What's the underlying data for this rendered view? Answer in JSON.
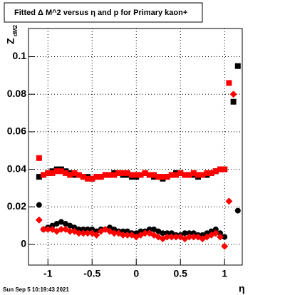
{
  "chart_data": {
    "type": "scatter",
    "title": "Fitted Δ M^2 versus η and p for Primary kaon+",
    "ylabel": "Z",
    "ylabel_subscript": "dM2",
    "xlabel": "η",
    "date": "Sun Sep  5 10:19:43 2021",
    "xlim": [
      -1.22,
      1.2
    ],
    "ylim": [
      -0.011,
      0.115
    ],
    "xticks": [
      -1,
      -0.5,
      0,
      0.5,
      1
    ],
    "yticks": [
      0,
      0.02,
      0.04,
      0.06,
      0.08,
      0.1
    ],
    "grid": true,
    "x": [
      -1.1,
      -1.05,
      -1,
      -0.95,
      -0.9,
      -0.85,
      -0.8,
      -0.75,
      -0.7,
      -0.65,
      -0.6,
      -0.55,
      -0.5,
      -0.45,
      -0.4,
      -0.35,
      -0.3,
      -0.25,
      -0.2,
      -0.15,
      -0.1,
      -0.05,
      0,
      0.05,
      0.1,
      0.15,
      0.2,
      0.25,
      0.3,
      0.35,
      0.4,
      0.45,
      0.5,
      0.55,
      0.6,
      0.65,
      0.7,
      0.75,
      0.8,
      0.85,
      0.9,
      0.95,
      1,
      1.05,
      1.1,
      1.15
    ],
    "series": [
      {
        "color": "#000000",
        "marker": "square",
        "values": [
          0.036,
          0.037,
          0.038,
          0.039,
          0.04,
          0.04,
          0.039,
          0.038,
          0.037,
          0.037,
          0.036,
          0.036,
          0.035,
          0.036,
          0.036,
          0.037,
          0.037,
          0.038,
          0.038,
          0.037,
          0.037,
          0.036,
          0.036,
          0.037,
          0.038,
          0.037,
          0.036,
          0.036,
          0.035,
          0.036,
          0.037,
          0.038,
          0.038,
          0.037,
          0.037,
          0.037,
          0.036,
          0.037,
          0.037,
          0.038,
          0.039,
          0.04,
          0.04,
          null,
          0.076,
          0.095
        ]
      },
      {
        "color": "#ff0000",
        "marker": "square",
        "values": [
          0.046,
          0.037,
          0.038,
          0.038,
          0.039,
          0.039,
          0.038,
          0.037,
          0.038,
          0.037,
          0.036,
          0.035,
          0.035,
          0.036,
          0.036,
          0.037,
          0.037,
          0.037,
          0.038,
          0.038,
          0.038,
          0.037,
          0.037,
          0.037,
          0.038,
          0.037,
          0.037,
          0.036,
          0.036,
          0.036,
          0.037,
          0.037,
          0.038,
          0.037,
          0.037,
          0.038,
          0.037,
          0.037,
          0.038,
          0.038,
          0.039,
          0.04,
          0.04,
          0.086,
          null,
          null
        ]
      },
      {
        "color": "#000000",
        "marker": "circle",
        "values": [
          0.021,
          0.008,
          0.009,
          0.01,
          0.011,
          0.012,
          0.011,
          0.01,
          0.009,
          0.008,
          0.008,
          0.008,
          0.008,
          0.007,
          0.008,
          0.008,
          0.009,
          0.008,
          0.007,
          0.007,
          0.007,
          0.006,
          0.006,
          0.007,
          0.007,
          0.008,
          0.008,
          0.007,
          0.006,
          0.006,
          0.006,
          0.005,
          0.005,
          0.006,
          0.006,
          0.006,
          0.005,
          0.005,
          0.006,
          0.007,
          0.008,
          0.006,
          0.004,
          null,
          null,
          0.018
        ]
      },
      {
        "color": "#ff0000",
        "marker": "diamond",
        "values": [
          0.013,
          0.008,
          0.008,
          0.008,
          0.007,
          0.008,
          0.008,
          0.007,
          0.007,
          0.006,
          0.006,
          0.006,
          0.006,
          0.005,
          0.007,
          0.008,
          0.007,
          0.006,
          0.006,
          0.005,
          0.005,
          0.005,
          0.004,
          0.005,
          0.006,
          0.006,
          0.005,
          0.004,
          0.003,
          0.004,
          0.004,
          0.004,
          0.004,
          0.003,
          0.004,
          0.004,
          0.004,
          0.003,
          0.004,
          0.005,
          0.006,
          0.004,
          -0.001,
          0.023,
          0.08,
          null
        ]
      }
    ]
  }
}
